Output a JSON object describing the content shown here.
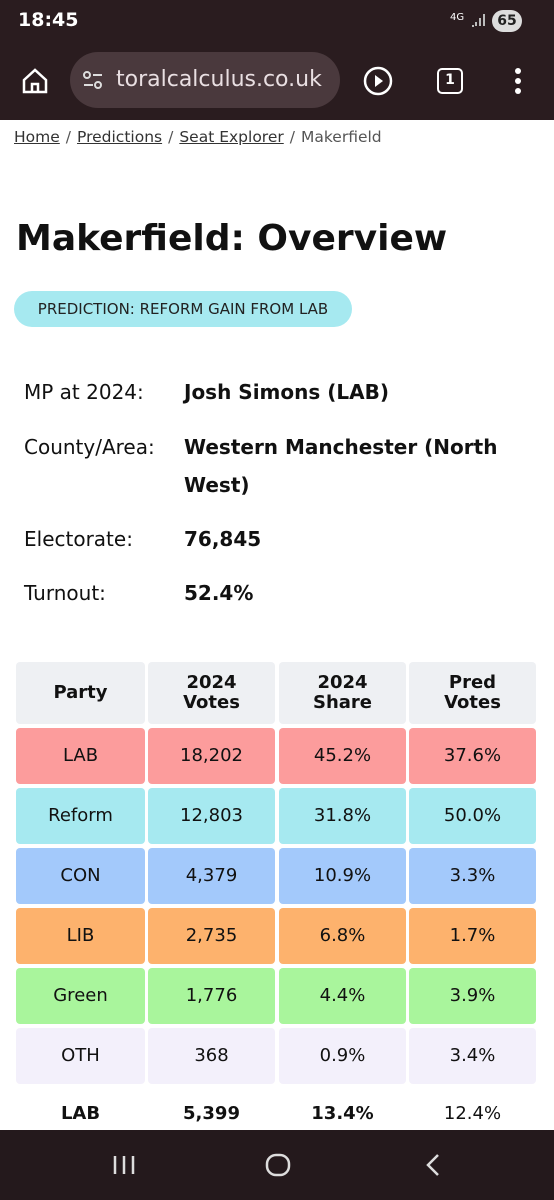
{
  "status_bar": {
    "time": "18:45",
    "network": "4G",
    "battery": "65"
  },
  "browser": {
    "url": "toralcalculus.co.uk",
    "tab_count": "1"
  },
  "breadcrumb": [
    "Home",
    "Predictions",
    "Seat Explorer",
    "Makerfield"
  ],
  "title": "Makerfield: Overview",
  "badge": "PREDICTION: REFORM GAIN FROM LAB",
  "info": [
    {
      "label": "MP at 2024:",
      "value": "Josh Simons  (LAB)"
    },
    {
      "label": "County/Area:",
      "value": "Western Manchester (North West)"
    },
    {
      "label": "Electorate:",
      "value": "76,845"
    },
    {
      "label": "Turnout:",
      "value": "52.4%"
    }
  ],
  "table": {
    "header": [
      "Party",
      "2024 Votes",
      "2024 Share",
      "Pred Votes"
    ],
    "rows": [
      {
        "cells": [
          "LAB",
          "18,202",
          "45.2%",
          "37.6%"
        ],
        "color": "#fc9c9c"
      },
      {
        "cells": [
          "Reform",
          "12,803",
          "31.8%",
          "50.0%"
        ],
        "color": "#a6e9f0"
      },
      {
        "cells": [
          "CON",
          "4,379",
          "10.9%",
          "3.3%"
        ],
        "color": "#a3c9fb"
      },
      {
        "cells": [
          "LIB",
          "2,735",
          "6.8%",
          "1.7%"
        ],
        "color": "#fdb26d"
      },
      {
        "cells": [
          "Green",
          "1,776",
          "4.4%",
          "3.9%"
        ],
        "color": "#a9f59c"
      },
      {
        "cells": [
          "OTH",
          "368",
          "0.9%",
          "3.4%"
        ],
        "color": "#f3f0fb"
      }
    ],
    "footer": [
      "LAB",
      "5,399",
      "13.4%",
      "12.4%"
    ]
  }
}
